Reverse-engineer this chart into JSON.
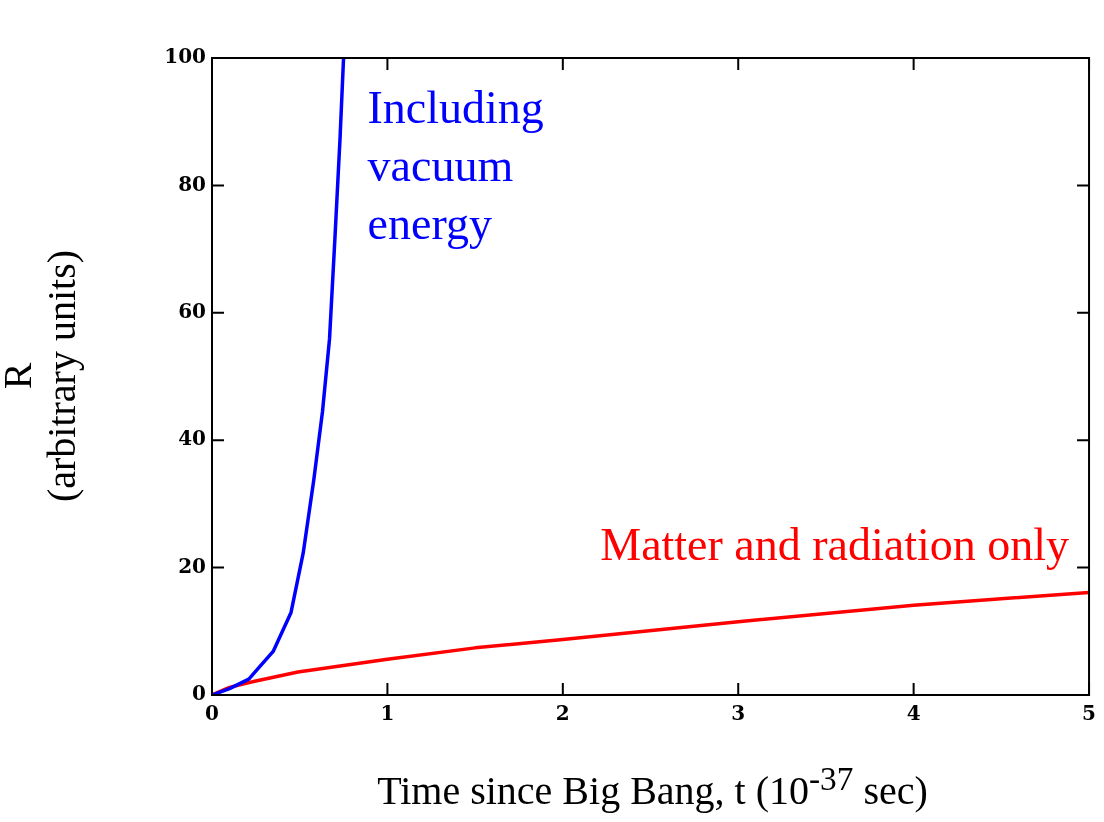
{
  "chart_data": {
    "type": "line",
    "xlabel": "Time since Big Bang, t (10$^{-37}$ sec)",
    "ylabel": "R (arbitrary units)",
    "xlim": [
      0,
      5
    ],
    "xticks": [
      0,
      1,
      2,
      3,
      4,
      5
    ],
    "ylim": [
      0,
      100
    ],
    "yticks": [
      0,
      20,
      40,
      60,
      80,
      100
    ],
    "grid": false,
    "legend": false,
    "marker": "none",
    "line_style": "solid",
    "series": [
      {
        "name": "Including vacuum energy",
        "color": "#0000ff",
        "x": [
          0,
          0.1,
          0.21,
          0.35,
          0.45,
          0.52,
          0.58,
          0.63,
          0.67,
          0.7,
          0.73,
          0.75
        ],
        "values": [
          0,
          1,
          2.5,
          6.9,
          12.9,
          22.3,
          33.7,
          44.5,
          55.9,
          71.3,
          87.4,
          100
        ]
      },
      {
        "name": "Matter and radiation only",
        "color": "#ff0000",
        "x": [
          0,
          0.1,
          0.25,
          0.49,
          1.0,
          1.5,
          2.0,
          3.0,
          4.0,
          5.0
        ],
        "values": [
          0,
          1.2,
          2.2,
          3.6,
          5.6,
          7.4,
          8.7,
          11.5,
          14.1,
          16.1
        ]
      }
    ]
  }
}
